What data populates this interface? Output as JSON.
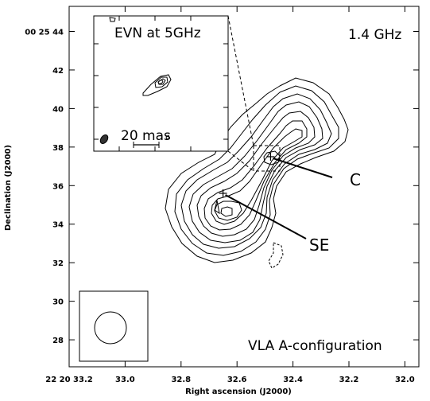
{
  "chart_data": {
    "type": "contour",
    "xlabel": "Right ascension (J2000)",
    "ylabel": "Declination (J2000)",
    "x_ticks": [
      {
        "value": 33.2,
        "label": "22 20 33.2"
      },
      {
        "value": 33.0,
        "label": "33.0"
      },
      {
        "value": 32.8,
        "label": "32.8"
      },
      {
        "value": 32.6,
        "label": "32.6"
      },
      {
        "value": 32.4,
        "label": "32.4"
      },
      {
        "value": 32.2,
        "label": "32.2"
      },
      {
        "value": 32.0,
        "label": "32.0"
      }
    ],
    "y_ticks": [
      {
        "value": 44,
        "label": "00 25 44"
      },
      {
        "value": 42,
        "label": "42"
      },
      {
        "value": 40,
        "label": "40"
      },
      {
        "value": 38,
        "label": "38"
      },
      {
        "value": 36,
        "label": "36"
      },
      {
        "value": 34,
        "label": "34"
      },
      {
        "value": 32,
        "label": "32"
      },
      {
        "value": 30,
        "label": "30"
      },
      {
        "value": 28,
        "label": "28"
      }
    ],
    "xlim": [
      33.2,
      31.95
    ],
    "ylim": [
      26.6,
      45.3
    ],
    "frequency_label": "1.4 GHz",
    "configuration_label": "VLA  A-configuration",
    "components": [
      {
        "label": "C",
        "ra": 32.48,
        "dec": 37.5
      },
      {
        "label": "SE",
        "ra": 32.65,
        "dec": 35.6
      }
    ],
    "inset": {
      "title": "EVN at 5GHz",
      "scale_label": "20 mas",
      "zoom_box_center": {
        "ra": 32.48,
        "dec": 37.5
      }
    }
  }
}
